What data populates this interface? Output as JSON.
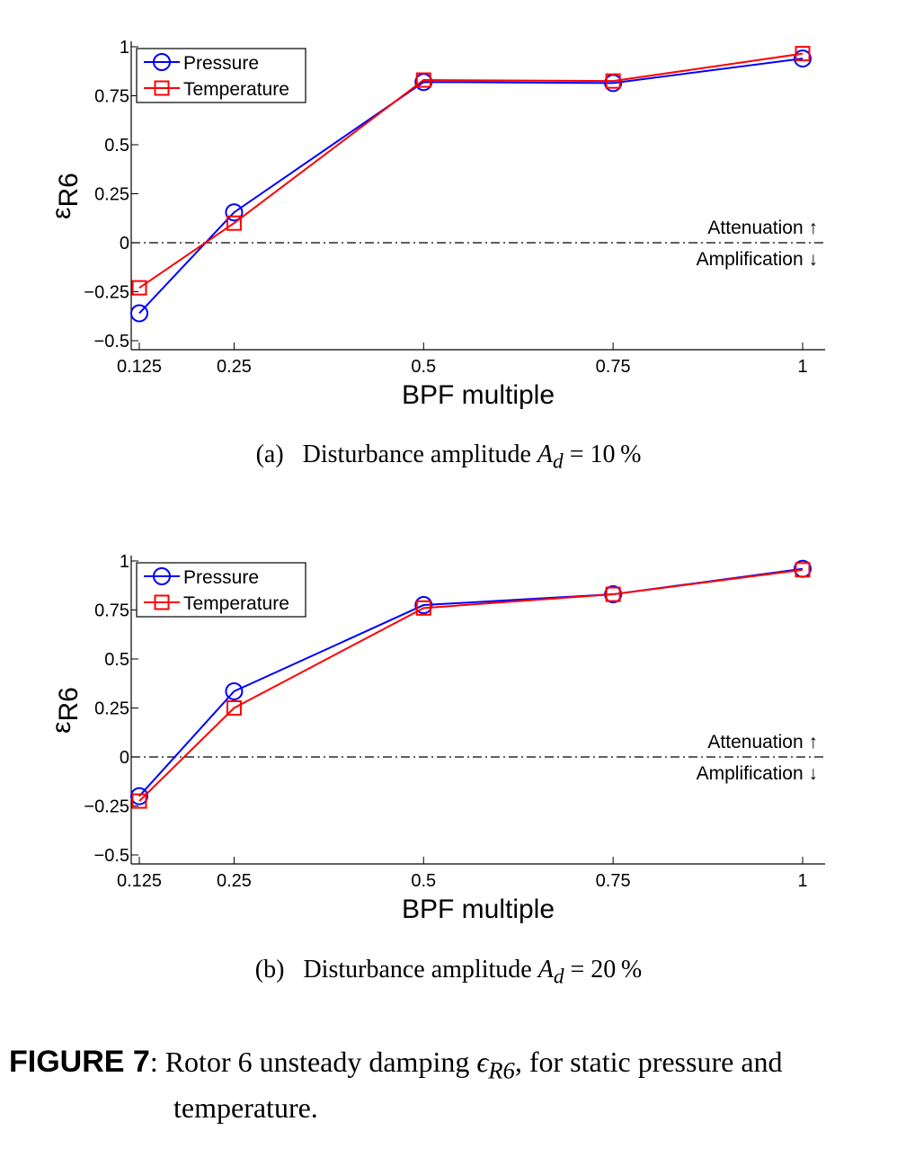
{
  "chart_data": [
    {
      "type": "line",
      "x": [
        0.125,
        0.25,
        0.5,
        0.75,
        1
      ],
      "x_tick_labels": [
        "0.125",
        "0.25",
        "0.5",
        "0.75",
        "1"
      ],
      "y_ticks": [
        1,
        0.75,
        0.5,
        0.25,
        0,
        -0.25,
        -0.5
      ],
      "y_tick_labels": [
        "1",
        "0.75",
        "0.5",
        "0.25",
        "0",
        "−0.25",
        "−0.5"
      ],
      "xlim": [
        0.125,
        1.0
      ],
      "ylim": [
        -0.5,
        1.0
      ],
      "xlabel": "BPF multiple",
      "ylabel": "ε",
      "ylabel_sub": "R6",
      "legend_position": "top-left",
      "grid": false,
      "series": [
        {
          "name": "Pressure",
          "values": [
            -0.36,
            0.155,
            0.82,
            0.815,
            0.94
          ],
          "color": "#0000ff",
          "marker": "circle"
        },
        {
          "name": "Temperature",
          "values": [
            -0.23,
            0.1,
            0.83,
            0.825,
            0.965
          ],
          "color": "#ff0000",
          "marker": "square"
        }
      ],
      "reference_line": {
        "y": 0,
        "style": "dash-dot"
      },
      "annotations": {
        "above": "Attenuation ↑",
        "below": "Amplification ↓"
      },
      "caption": {
        "letter": "(a)",
        "text": "Disturbance amplitude",
        "var": "A",
        "sub": "d",
        "eq": "= 10 %"
      }
    },
    {
      "type": "line",
      "x": [
        0.125,
        0.25,
        0.5,
        0.75,
        1
      ],
      "x_tick_labels": [
        "0.125",
        "0.25",
        "0.5",
        "0.75",
        "1"
      ],
      "y_ticks": [
        1,
        0.75,
        0.5,
        0.25,
        0,
        -0.25,
        -0.5
      ],
      "y_tick_labels": [
        "1",
        "0.75",
        "0.5",
        "0.25",
        "0",
        "−0.25",
        "−0.5"
      ],
      "xlim": [
        0.125,
        1.0
      ],
      "ylim": [
        -0.5,
        1.0
      ],
      "xlabel": "BPF multiple",
      "ylabel": "ε",
      "ylabel_sub": "R6",
      "legend_position": "top-left",
      "grid": false,
      "series": [
        {
          "name": "Pressure",
          "values": [
            -0.2,
            0.335,
            0.775,
            0.83,
            0.96
          ],
          "color": "#0000ff",
          "marker": "circle"
        },
        {
          "name": "Temperature",
          "values": [
            -0.225,
            0.25,
            0.76,
            0.83,
            0.955
          ],
          "color": "#ff0000",
          "marker": "square"
        }
      ],
      "reference_line": {
        "y": 0,
        "style": "dash-dot"
      },
      "annotations": {
        "above": "Attenuation ↑",
        "below": "Amplification ↓"
      },
      "caption": {
        "letter": "(b)",
        "text": "Disturbance amplitude",
        "var": "A",
        "sub": "d",
        "eq": "= 20 %"
      }
    }
  ],
  "figure": {
    "label": "FIGURE 7",
    "colon": ":",
    "text_before": "Rotor 6 unsteady damping",
    "sym": "ϵ",
    "sym_sub": "R6",
    "text_after": ", for static pressure and",
    "text_line2": "temperature."
  }
}
